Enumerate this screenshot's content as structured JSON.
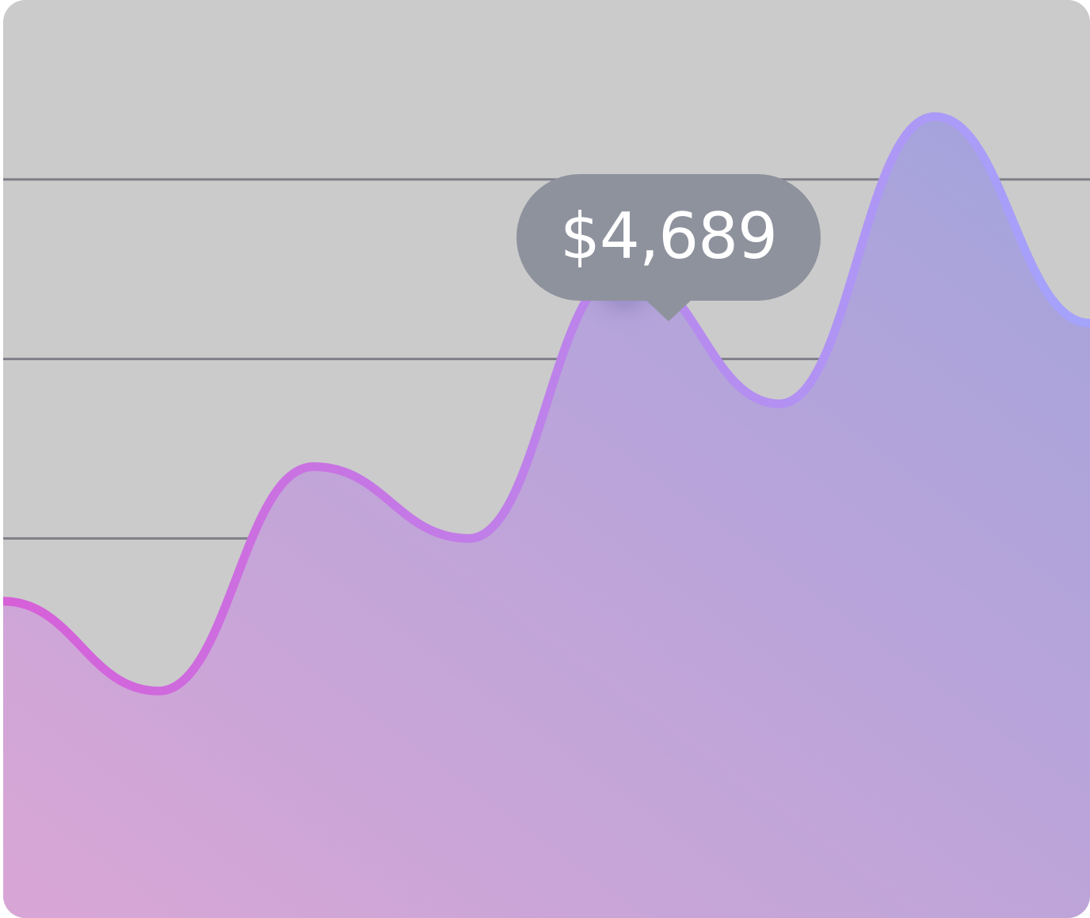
{
  "colors": {
    "background": "#cbcbcb",
    "gridline": "#7e7f88",
    "line_start": "#d75fd8",
    "line_end": "#a4a4fc",
    "fill_start": "#d9a6d6",
    "fill_end": "#a2a3dc",
    "marker": "#8688ee",
    "tooltip_bg": "#8e929d"
  },
  "chart_data": {
    "type": "area",
    "title": "",
    "xlabel": "",
    "ylabel": "",
    "grid": "horizontal",
    "legend": "none",
    "ylim": [
      0,
      100
    ],
    "x": [
      0,
      1,
      2,
      3,
      4,
      5,
      6,
      7
    ],
    "values": [
      33,
      23,
      48,
      40,
      70,
      55,
      87,
      64
    ],
    "highlight": {
      "index": 4,
      "label": "$4,689"
    }
  }
}
